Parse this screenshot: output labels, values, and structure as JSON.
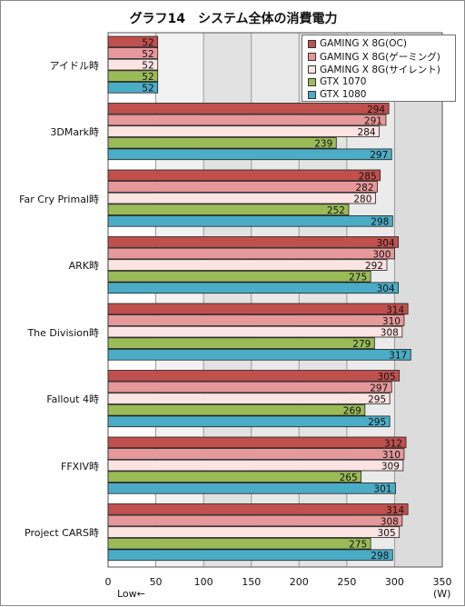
{
  "chart_data": {
    "type": "bar",
    "orientation": "horizontal",
    "title": "グラフ14　システム全体の消費電力",
    "categories": [
      "アイドル時",
      "3DMark時",
      "Far Cry Primal時",
      "ARK時",
      "The Division時",
      "Fallout 4時",
      "FFXIV時",
      "Project CARS時"
    ],
    "series": [
      {
        "name": "GAMING X 8G(OC)",
        "color": "#c0504d",
        "values": [
          52,
          294,
          285,
          304,
          314,
          305,
          312,
          314
        ]
      },
      {
        "name": "GAMING X 8G(ゲーミング)",
        "color": "#e6989a",
        "values": [
          52,
          291,
          282,
          300,
          310,
          297,
          310,
          308
        ]
      },
      {
        "name": "GAMING X 8G(サイレント)",
        "color": "#fbe4e2",
        "values": [
          52,
          284,
          280,
          292,
          308,
          295,
          309,
          305
        ]
      },
      {
        "name": "GTX 1070",
        "color": "#9bbb59",
        "values": [
          52,
          239,
          252,
          275,
          279,
          269,
          265,
          275
        ]
      },
      {
        "name": "GTX 1080",
        "color": "#4bacc6",
        "values": [
          52,
          297,
          298,
          304,
          317,
          295,
          301,
          298
        ]
      }
    ],
    "xlim": [
      0,
      350
    ],
    "xticks": [
      0,
      50,
      100,
      150,
      200,
      250,
      300,
      350
    ],
    "xunit": "(W)",
    "xnote": "Low←",
    "grid": true,
    "legend": "top-right"
  }
}
